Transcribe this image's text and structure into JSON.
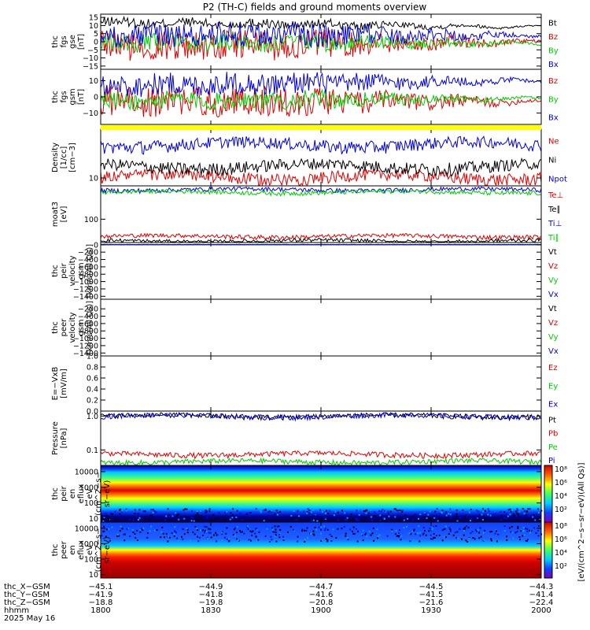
{
  "title": "P2 (TH-C) fields and ground moments overview",
  "colors": {
    "black": "#000000",
    "red": "#e00000",
    "green": "#00cc00",
    "blue": "#0000e0",
    "yellow": "#ffff00"
  },
  "chart_data": [
    {
      "type": "line",
      "id": "fgs_gse",
      "ylabel": [
        "thc",
        "fgs",
        "gse",
        "[nT]"
      ],
      "yticks": [
        "15",
        "10",
        "5",
        "0",
        "−5",
        "−10",
        "−15"
      ],
      "ytick_values": [
        15,
        10,
        5,
        0,
        -5,
        -10,
        -15
      ],
      "ylim": [
        -17,
        17
      ],
      "series": [
        {
          "name": "Bt",
          "color": "#000000",
          "start_spread": [
            9,
            15
          ],
          "end": 9
        },
        {
          "name": "Bz",
          "color": "#e00000",
          "start_spread": [
            -12,
            6
          ],
          "end": 0
        },
        {
          "name": "By",
          "color": "#00cc00",
          "start_spread": [
            -6,
            5
          ],
          "end": -1
        },
        {
          "name": "Bx",
          "color": "#0000e0",
          "start_spread": [
            -3,
            12
          ],
          "end": 4
        }
      ]
    },
    {
      "type": "line",
      "id": "fgs_gsm",
      "ylabel": [
        "thc",
        "fgs",
        "gsm",
        "[nT]"
      ],
      "yticks": [
        "10",
        "0",
        "−10"
      ],
      "ytick_values": [
        10,
        0,
        -10
      ],
      "ylim": [
        -17,
        17
      ],
      "series": [
        {
          "name": "Bz",
          "color": "#e00000",
          "start_spread": [
            -12,
            6
          ],
          "end": -3
        },
        {
          "name": "By",
          "color": "#00cc00",
          "start_spread": [
            -8,
            3
          ],
          "end": -1
        },
        {
          "name": "Bx",
          "color": "#0000e0",
          "start_spread": [
            0,
            14
          ],
          "end": 10
        }
      ]
    },
    {
      "type": "line",
      "id": "density",
      "ylabel": [
        "Density",
        "[1/cc]",
        "[cm−3]"
      ],
      "yticks": [
        "10"
      ],
      "ytick_values": [
        10
      ],
      "ylog": true,
      "ylim": [
        8,
        40
      ],
      "series": [
        {
          "name": "Ne",
          "color": "#e00000",
          "level": 10.3
        },
        {
          "name": "Ni",
          "color": "#000000",
          "level": 14
        },
        {
          "name": "Npot",
          "color": "#0000e0",
          "level": 26
        }
      ]
    },
    {
      "type": "line",
      "id": "temperature",
      "ylabel": [
        "moat3",
        "[eV]"
      ],
      "yticks": [
        "100"
      ],
      "ytick_values": [
        100
      ],
      "ylog": true,
      "ylim": [
        15,
        1500
      ],
      "series": [
        {
          "name": "Te⊥",
          "color": "#e00000",
          "level": 25
        },
        {
          "name": "Te∥",
          "color": "#000000",
          "level": 17
        },
        {
          "name": "Ti⊥",
          "color": "#0000e0",
          "level": 1100
        },
        {
          "name": "Ti∥",
          "color": "#00cc00",
          "level": 900
        }
      ]
    },
    {
      "type": "line",
      "id": "peir_velocity",
      "ylabel": [
        "thc",
        "peir",
        "velocity",
        "gsm",
        "[km/s(All Qs)]"
      ],
      "yticks": [
        "0",
        "−200",
        "−400",
        "−600",
        "−800",
        "−1000",
        "−1200",
        "−1400"
      ],
      "ytick_values": [
        0,
        -200,
        -400,
        -600,
        -800,
        -1000,
        -1200,
        -1400
      ],
      "ylim": [
        -1480,
        60
      ],
      "series": [
        {
          "name": "Vt",
          "color": "#000000",
          "level": 8
        },
        {
          "name": "Vz",
          "color": "#e00000",
          "level": 0
        },
        {
          "name": "Vy",
          "color": "#00cc00",
          "level": 0
        },
        {
          "name": "Vx",
          "color": "#0000e0",
          "level": 0
        }
      ]
    },
    {
      "type": "line",
      "id": "peer_velocity",
      "ylabel": [
        "thc",
        "peer",
        "velocity",
        "gsm",
        "[km/s(All Qs)]"
      ],
      "yticks": [
        "−200",
        "−400",
        "−600",
        "−800",
        "−1000",
        "−1200",
        "−1400"
      ],
      "ytick_values": [
        -200,
        -400,
        -600,
        -800,
        -1000,
        -1200,
        -1400
      ],
      "ylim": [
        -1480,
        60
      ],
      "series": [
        {
          "name": "Vt",
          "color": "#000000"
        },
        {
          "name": "Vz",
          "color": "#e00000"
        },
        {
          "name": "Vy",
          "color": "#00cc00"
        },
        {
          "name": "Vx",
          "color": "#0000e0"
        }
      ]
    },
    {
      "type": "line",
      "id": "efield",
      "ylabel": [
        "E=−VxB",
        "[mV/m]"
      ],
      "yticks": [
        "1.0",
        "0.8",
        "0.6",
        "0.4",
        "0.2",
        "0.0"
      ],
      "ytick_values": [
        1.0,
        0.8,
        0.6,
        0.4,
        0.2,
        0.0
      ],
      "ylim": [
        0,
        1
      ],
      "series": [
        {
          "name": "Ez",
          "color": "#e00000"
        },
        {
          "name": "Ey",
          "color": "#00cc00"
        },
        {
          "name": "Ex",
          "color": "#0000e0"
        }
      ]
    },
    {
      "type": "line",
      "id": "pressure",
      "ylabel": [
        "Pressure",
        "[nPa]"
      ],
      "yticks": [
        "1.0",
        "0.1"
      ],
      "ytick_values": [
        1.0,
        0.1
      ],
      "ylog": true,
      "ylim": [
        0.035,
        1.4
      ],
      "series": [
        {
          "name": "Pt",
          "color": "#000000",
          "level": 1.0
        },
        {
          "name": "Pb",
          "color": "#e00000",
          "level": 0.075
        },
        {
          "name": "Pe",
          "color": "#00cc00",
          "level": 0.045
        },
        {
          "name": "Pi",
          "color": "#0000e0",
          "level": 1.0
        }
      ]
    },
    {
      "type": "heatmap",
      "id": "peir_spec",
      "ylabel": [
        "thc",
        "peir",
        "en",
        "eflux",
        "eV",
        "(cm^2−s−",
        "sr−eV)"
      ],
      "yticks": [
        "10000",
        "1000",
        "100",
        "10"
      ],
      "ytick_values": [
        10000,
        1000,
        100,
        10
      ],
      "ylog": true,
      "ylim": [
        6,
        25000
      ]
    },
    {
      "type": "heatmap",
      "id": "peer_spec",
      "ylabel": [
        "thc",
        "peer",
        "en",
        "eflux",
        "eV",
        "(cm^2−s−",
        "sr−eV)"
      ],
      "yticks": [
        "10000",
        "1000",
        "100",
        "10"
      ],
      "ytick_values": [
        10000,
        1000,
        100,
        10
      ],
      "ylog": true,
      "ylim": [
        6,
        25000
      ]
    }
  ],
  "colorbar": {
    "ticks": [
      "10⁸",
      "10⁶",
      "10⁴",
      "10²",
      "10⁸",
      "10⁶",
      "10⁴",
      "10²"
    ],
    "label": "[eV/(cm^2−s−sr−eV)(All Qs)]"
  },
  "xaxis": {
    "rows": [
      {
        "label": "thc_X−GSM",
        "values": [
          "−45.1",
          "−44.9",
          "−44.7",
          "−44.5",
          "−44.3"
        ]
      },
      {
        "label": "thc_Y−GSM",
        "values": [
          "−41.9",
          "−41.8",
          "−41.6",
          "−41.5",
          "−41.4"
        ]
      },
      {
        "label": "thc_Z−GSM",
        "values": [
          "−18.8",
          "−19.8",
          "−20.8",
          "−21.6",
          "−22.4"
        ]
      },
      {
        "label": "hhmm",
        "values": [
          "1800",
          "1830",
          "1900",
          "1930",
          "2000"
        ]
      }
    ],
    "date": "2025 May 16",
    "time_range_minutes": [
      0,
      120
    ],
    "tick_minutes": [
      0,
      30,
      60,
      90,
      120
    ]
  }
}
